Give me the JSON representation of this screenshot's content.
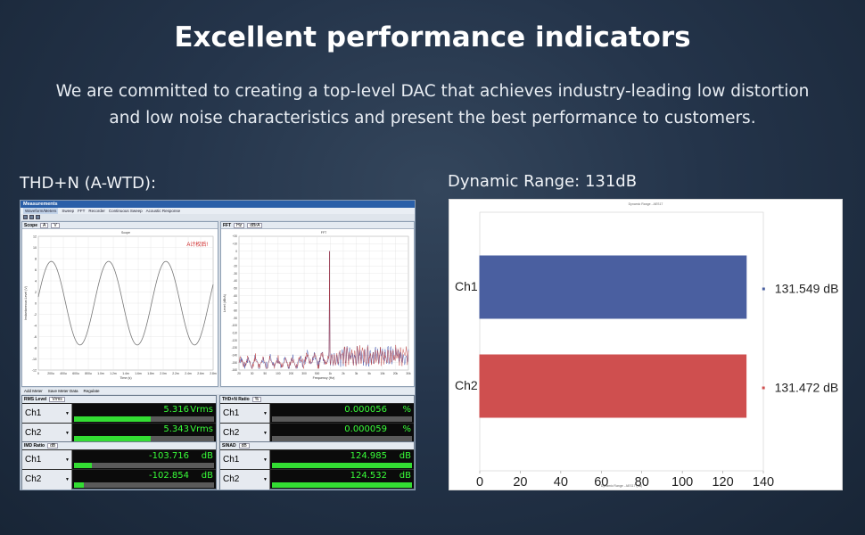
{
  "headline": "Excellent performance indicators",
  "subtitle_line1": "We are committed to creating a top-level DAC that achieves industry-leading low distortion",
  "subtitle_line2": "and low noise characteristics and present the best performance to customers.",
  "left_section_label": "THD+N (A-WTD):",
  "right_section_label": "Dynamic Range: 131dB",
  "app": {
    "title": "Measurements",
    "menu": [
      "Waveform/Meters",
      "Sweep",
      "FFT",
      "Recorder",
      "Continuous Sweep",
      "Acoustic Response"
    ],
    "scope": {
      "title": "Scope",
      "channel": "A",
      "unit": "V",
      "plot_title": "Scope",
      "annotation": "A计权后!",
      "x_label": "Time (s)",
      "y_label": "Instantaneous Level (V)",
      "x_ticks": [
        "0",
        "200u",
        "400u",
        "600u",
        "800u",
        "1.0m",
        "1.2m",
        "1.4m",
        "1.6m",
        "1.8m",
        "2.0m",
        "2.2m",
        "2.4m",
        "2.6m",
        "2.8m"
      ],
      "y_ticks": [
        "12",
        "10",
        "8",
        "6",
        "4",
        "2",
        "0",
        "-2",
        "-4",
        "-6",
        "-8",
        "-10",
        "-12"
      ]
    },
    "fft": {
      "title": "FFT",
      "channel": "Hz",
      "unit": "dBrA",
      "plot_title": "FFT",
      "x_label": "Frequency (Hz)",
      "y_label": "Level (dBrA)",
      "x_ticks": [
        "20",
        "30",
        "50",
        "100",
        "200",
        "300",
        "500",
        "1k",
        "2k",
        "3k",
        "5k",
        "10k",
        "20k",
        "30k"
      ],
      "y_ticks": [
        "+20",
        "+10",
        "0",
        "-10",
        "-20",
        "-30",
        "-40",
        "-50",
        "-60",
        "-70",
        "-80",
        "-90",
        "-100",
        "-110",
        "-120",
        "-130",
        "-140",
        "-150",
        "-160"
      ]
    },
    "meter_bar": [
      "Add Meter",
      "Save Meter Data",
      "Regulate"
    ],
    "meters": [
      {
        "title": "RMS Level",
        "unit_select": "Vrms",
        "rows": [
          {
            "ch": "Ch1",
            "value": "5.316",
            "unit": "Vrms",
            "bar": 0.55
          },
          {
            "ch": "Ch2",
            "value": "5.343",
            "unit": "Vrms",
            "bar": 0.55
          }
        ]
      },
      {
        "title": "THD+N Ratio",
        "unit_select": "%",
        "rows": [
          {
            "ch": "Ch1",
            "value": "0.000056",
            "unit": "%",
            "bar": 0.0
          },
          {
            "ch": "Ch2",
            "value": "0.000059",
            "unit": "%",
            "bar": 0.0
          }
        ]
      },
      {
        "title": "IMD Ratio",
        "unit_select": "dB",
        "rows": [
          {
            "ch": "Ch1",
            "value": "-103.716",
            "unit": "dB",
            "bar": 0.13
          },
          {
            "ch": "Ch2",
            "value": "-102.854",
            "unit": "dB",
            "bar": 0.07
          }
        ]
      },
      {
        "title": "SINAD",
        "unit_select": "dB",
        "rows": [
          {
            "ch": "Ch1",
            "value": "124.985",
            "unit": "dB",
            "bar": 1.0
          },
          {
            "ch": "Ch2",
            "value": "124.532",
            "unit": "dB",
            "bar": 1.0
          }
        ]
      }
    ]
  },
  "chart_data": {
    "type": "bar",
    "orientation": "horizontal",
    "categories": [
      "Ch1",
      "Ch2"
    ],
    "values": [
      131.549,
      131.472
    ],
    "value_labels": [
      "131.549 dB",
      "131.472 dB"
    ],
    "colors": [
      "#4a5fa0",
      "#cf4f4f"
    ],
    "x_ticks": [
      0,
      20,
      40,
      60,
      80,
      100,
      120,
      140
    ],
    "xlim": [
      0,
      140
    ],
    "title": "Dynamic Range - AES17",
    "xlabel": "Dynamic Range - AES17 (dB)",
    "grid": false
  }
}
